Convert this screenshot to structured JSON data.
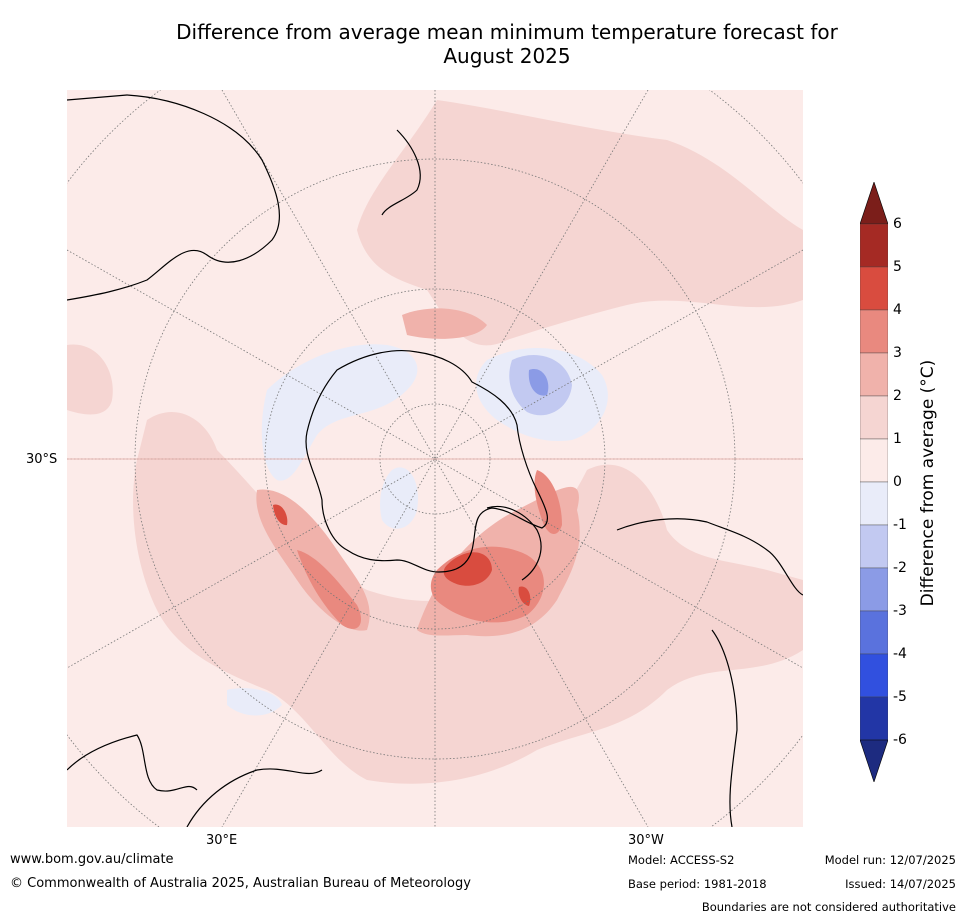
{
  "title": {
    "line1": "Difference from average mean minimum temperature forecast for",
    "line2": "August 2025"
  },
  "map": {
    "projection": "south-polar-stereographic",
    "lat_label": "30°S",
    "lon_labels": [
      "30°E",
      "30°W"
    ],
    "land_outline_color": "#000000",
    "graticule_color": "#777777"
  },
  "colorbar": {
    "label": "Difference from average (°C)",
    "ticks": [
      "6",
      "5",
      "4",
      "3",
      "2",
      "1",
      "0",
      "-1",
      "-2",
      "-3",
      "-4",
      "-5",
      "-6"
    ],
    "colors_top_to_bottom": [
      "#7b1e1a",
      "#a52a24",
      "#d94c3f",
      "#e9897f",
      "#f0b2ab",
      "#f5d5d2",
      "#fcebe9",
      "#e9ecf9",
      "#c2c9f1",
      "#8b9be6",
      "#5a72dd",
      "#3150df",
      "#2236a6",
      "#1d2b80"
    ]
  },
  "footer": {
    "website": "www.bom.gov.au/climate",
    "copyright": "© Commonwealth of Australia 2025, Australian Bureau of Meteorology",
    "model": "Model: ACCESS-S2",
    "base_period": "Base period: 1981-2018",
    "model_run": "Model run: 12/07/2025",
    "issued": "Issued: 14/07/2025",
    "disclaimer": "Boundaries are not considered authoritative"
  }
}
